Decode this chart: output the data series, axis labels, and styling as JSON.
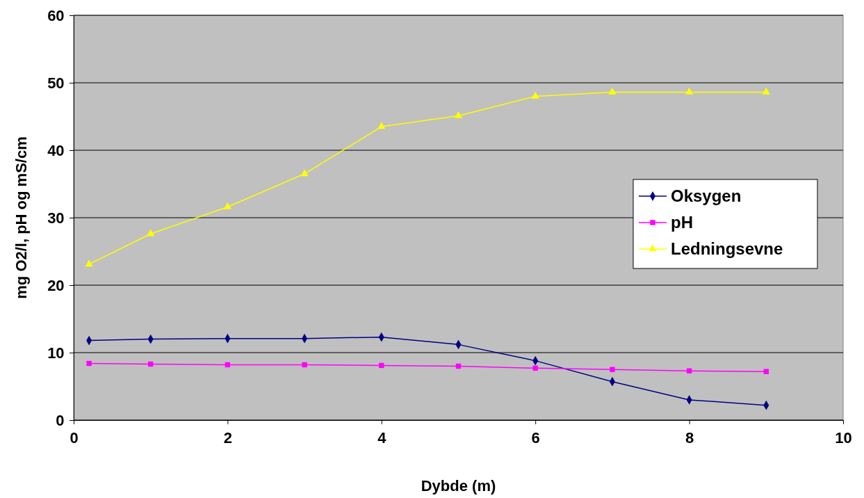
{
  "chart_data": {
    "type": "line",
    "xlabel": "Dybde (m)",
    "ylabel": "mg O2/l, pH og mS/cm",
    "x": [
      0.2,
      1,
      2,
      3,
      4,
      5,
      6,
      7,
      8,
      9
    ],
    "xlim": [
      0,
      10
    ],
    "xticks": [
      0,
      2,
      4,
      6,
      8,
      10
    ],
    "ylim": [
      0,
      60
    ],
    "yticks": [
      0,
      10,
      20,
      30,
      40,
      50,
      60
    ],
    "grid": "y",
    "legend": "right",
    "series": [
      {
        "name": "Oksygen",
        "color": "#000080",
        "marker": "diamond",
        "values": [
          11.8,
          12.0,
          12.1,
          12.1,
          12.3,
          11.2,
          8.8,
          5.7,
          3.0,
          2.2
        ]
      },
      {
        "name": "pH",
        "color": "#ff00ff",
        "marker": "square",
        "values": [
          8.4,
          8.3,
          8.2,
          8.2,
          8.1,
          8.0,
          7.7,
          7.5,
          7.3,
          7.2
        ]
      },
      {
        "name": "Ledningsevne",
        "color": "#ffff00",
        "marker": "triangle",
        "values": [
          23.1,
          27.6,
          31.6,
          36.5,
          43.5,
          45.1,
          48.0,
          48.6,
          48.6,
          48.6
        ]
      }
    ]
  }
}
